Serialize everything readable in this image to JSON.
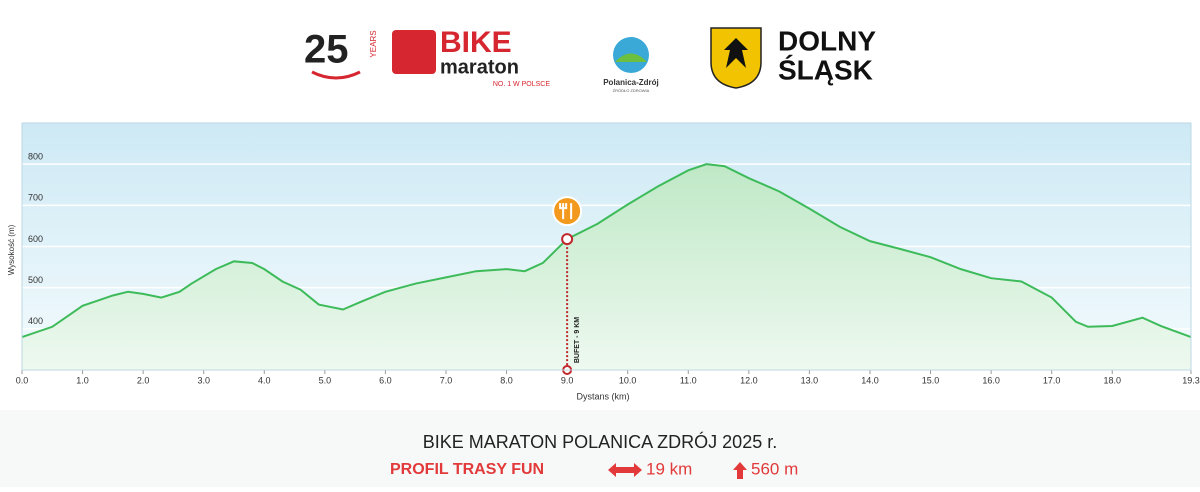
{
  "header": {
    "logo_years_number": "25",
    "logo_years_text": "YEARS",
    "logo_bike": "BIKE",
    "logo_maraton": "maraton",
    "logo_tagline": "NO. 1 W POLSCE",
    "logo_town": "Polanica-Zdrój",
    "logo_town_tagline": "ŹRÓDŁO ZDROWIA",
    "logo_region_1": "DOLNY",
    "logo_region_2": "ŚLĄSK"
  },
  "chart_data": {
    "type": "area",
    "x_label": "Dystans (km)",
    "y_label": "Wysokość (m)",
    "color": "#3dbb5a",
    "x": [
      0.0,
      0.5,
      1.0,
      1.5,
      1.75,
      2.0,
      2.3,
      2.6,
      2.8,
      3.2,
      3.5,
      3.8,
      4.0,
      4.3,
      4.6,
      4.9,
      5.3,
      5.6,
      6.0,
      6.5,
      7.0,
      7.5,
      8.0,
      8.3,
      8.6,
      9.0,
      9.5,
      10.0,
      10.5,
      11.0,
      11.3,
      11.6,
      12.0,
      12.5,
      13.0,
      13.5,
      14.0,
      14.5,
      15.0,
      15.5,
      16.0,
      16.5,
      17.0,
      17.4,
      17.6,
      18.0,
      18.5,
      18.8,
      19.3
    ],
    "values": [
      380,
      405,
      456,
      481,
      490,
      485,
      476,
      490,
      510,
      545,
      564,
      560,
      545,
      515,
      495,
      459,
      447,
      466,
      490,
      510,
      525,
      540,
      545,
      540,
      560,
      618,
      655,
      702,
      746,
      785,
      800,
      795,
      766,
      734,
      692,
      648,
      613,
      594,
      574,
      545,
      523,
      515,
      476,
      417,
      405,
      407,
      427,
      407,
      380
    ],
    "xlim": [
      0,
      19.3
    ],
    "ylim": [
      300,
      900
    ],
    "xticks": [
      {
        "value": 0,
        "label": "0.0"
      },
      {
        "value": 1,
        "label": "1.0"
      },
      {
        "value": 2,
        "label": "2.0"
      },
      {
        "value": 3,
        "label": "3.0"
      },
      {
        "value": 4,
        "label": "4.0"
      },
      {
        "value": 5,
        "label": "5.0"
      },
      {
        "value": 6,
        "label": "6.0"
      },
      {
        "value": 7,
        "label": "7.0"
      },
      {
        "value": 8,
        "label": "8.0"
      },
      {
        "value": 9,
        "label": "9.0"
      },
      {
        "value": 10,
        "label": "10.0"
      },
      {
        "value": 11,
        "label": "11.0"
      },
      {
        "value": 12,
        "label": "12.0"
      },
      {
        "value": 13,
        "label": "13.0"
      },
      {
        "value": 14,
        "label": "14.0"
      },
      {
        "value": 15,
        "label": "15.0"
      },
      {
        "value": 16,
        "label": "16.0"
      },
      {
        "value": 17,
        "label": "17.0"
      },
      {
        "value": 18,
        "label": "18.0"
      },
      {
        "value": 19.3,
        "label": "19.3"
      }
    ],
    "yticks": [
      400,
      500,
      600,
      700,
      800
    ],
    "grid": true,
    "annotations": [
      {
        "x": 9.0,
        "text": "BUFET - 9 KM"
      }
    ]
  },
  "footer": {
    "title": "BIKE MARATON POLANICA ZDRÓJ 2025 r.",
    "subtitle": "PROFIL TRASY FUN",
    "distance": "19 km",
    "climb": "560 m"
  }
}
